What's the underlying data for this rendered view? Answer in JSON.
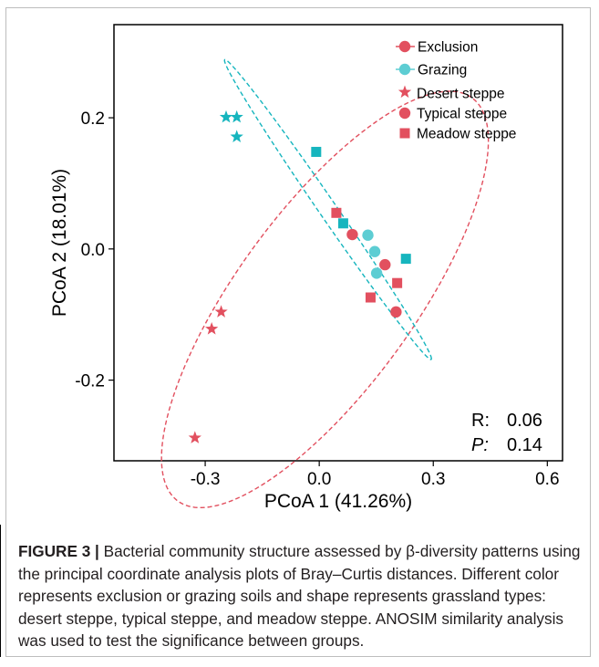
{
  "chart_data": {
    "type": "scatter",
    "xlabel": "PCoA 1 (41.26%)",
    "ylabel": "PCoA 2 (18.01%)",
    "xlim": [
      -0.54,
      0.64
    ],
    "ylim": [
      -0.323,
      0.342
    ],
    "xticks": [
      -0.3,
      0.0,
      0.3,
      0.6
    ],
    "xtick_labels": [
      "-0.3",
      "0.0",
      "0.3",
      "0.6"
    ],
    "yticks": [
      -0.2,
      0.0,
      0.2
    ],
    "ytick_labels": [
      "-0.2",
      "0.0",
      "0.2"
    ],
    "colors": {
      "Exclusion": "#e2505f",
      "Grazing": "#16b5be",
      "Grazing_light": "#5dcdd3"
    },
    "legend": {
      "position": "top-right",
      "items": [
        {
          "label": "Exclusion",
          "marker": "circle-line",
          "color": "#e2505f"
        },
        {
          "label": "Grazing",
          "marker": "circle-line",
          "color": "#5dcdd3"
        },
        {
          "label": "Desert steppe",
          "marker": "star",
          "color": "#e2505f"
        },
        {
          "label": "Typical steppe",
          "marker": "circle",
          "color": "#e2505f"
        },
        {
          "label": "Meadow steppe",
          "marker": "square",
          "color": "#e2505f"
        }
      ]
    },
    "series": [
      {
        "group": "Exclusion",
        "shape": "star",
        "color": "#e2505f",
        "points": [
          [
            -0.258,
            -0.096
          ],
          [
            -0.283,
            -0.122
          ],
          [
            -0.327,
            -0.288
          ]
        ]
      },
      {
        "group": "Exclusion",
        "shape": "circle",
        "color": "#e2505f",
        "points": [
          [
            0.087,
            0.022
          ],
          [
            0.173,
            -0.024
          ],
          [
            0.202,
            -0.096
          ]
        ]
      },
      {
        "group": "Exclusion",
        "shape": "square",
        "color": "#e2505f",
        "points": [
          [
            0.045,
            0.055
          ],
          [
            0.135,
            -0.074
          ],
          [
            0.205,
            -0.052
          ]
        ]
      },
      {
        "group": "Grazing",
        "shape": "star",
        "color": "#16b5be",
        "points": [
          [
            -0.245,
            0.201
          ],
          [
            -0.217,
            0.201
          ],
          [
            -0.217,
            0.171
          ]
        ]
      },
      {
        "group": "Grazing",
        "shape": "circle",
        "color": "#5dcdd3",
        "points": [
          [
            0.128,
            0.021
          ],
          [
            0.146,
            -0.004
          ],
          [
            0.151,
            -0.037
          ]
        ]
      },
      {
        "group": "Grazing",
        "shape": "square",
        "color": "#16b5be",
        "points": [
          [
            -0.008,
            0.148
          ],
          [
            0.063,
            0.039
          ],
          [
            0.228,
            -0.015
          ]
        ]
      }
    ],
    "ellipses": [
      {
        "group": "Exclusion",
        "color": "#e2505f",
        "center": [
          0.015,
          -0.077
        ],
        "semi_axis_a": 0.505,
        "semi_axis_b": 0.175,
        "angle_deg": 34
      },
      {
        "group": "Grazing",
        "color": "#16b5be",
        "center": [
          0.023,
          0.06
        ],
        "semi_axis_a": 0.355,
        "semi_axis_b": 0.018,
        "angle_deg": -40
      }
    ],
    "annotations": [
      {
        "name": "R",
        "label": "R:",
        "value": "0.06"
      },
      {
        "name": "P",
        "label": "P:",
        "value": "0.14",
        "italic_label": true
      }
    ]
  },
  "caption": {
    "label": "FIGURE 3 |",
    "text": " Bacterial community structure assessed by β-diversity patterns using the principal coordinate analysis plots of Bray–Curtis distances. Different color represents exclusion or grazing soils and shape represents grassland types: desert steppe, typical steppe, and meadow steppe. ANOSIM similarity analysis was used to test the significance between groups."
  }
}
